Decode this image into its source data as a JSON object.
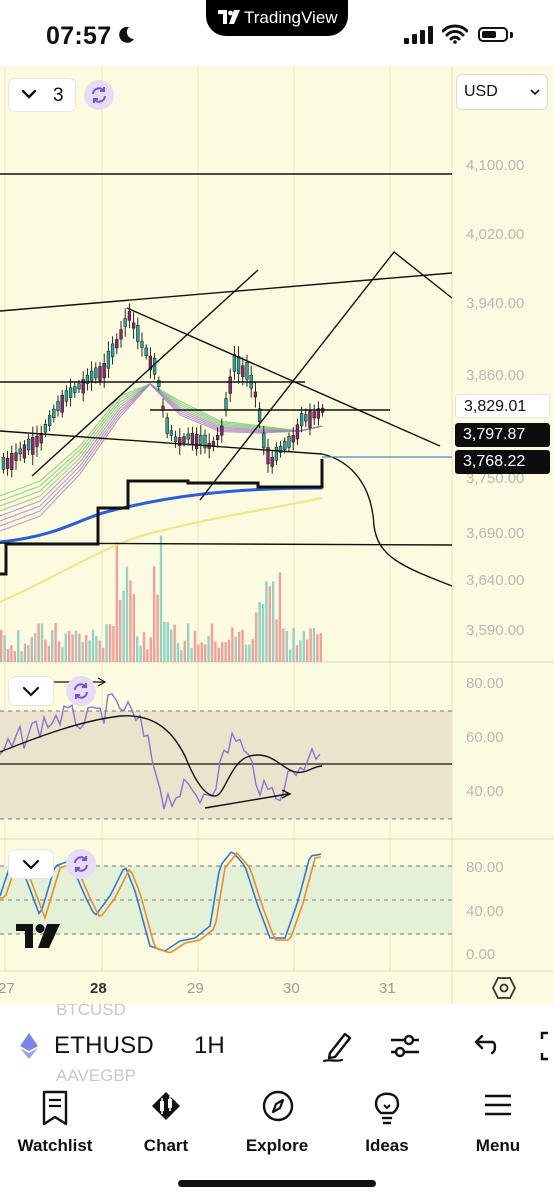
{
  "status_bar": {
    "time": "07:57",
    "app_name": "TradingView"
  },
  "chart": {
    "interval_count": "3",
    "currency": "USD",
    "price_axis": [
      "4,100.00",
      "4,020.00",
      "3,940.00",
      "3,860.00",
      "3,750.00",
      "3,690.00",
      "3,640.00",
      "3,590.00"
    ],
    "rsi_axis": [
      "80.00",
      "60.00",
      "40.00"
    ],
    "stoch_axis": [
      "80.00",
      "40.00",
      "0.00"
    ],
    "time_axis": [
      "27",
      "28",
      "29",
      "30",
      "31"
    ],
    "price_tags": {
      "last": "3,829.01",
      "tag2": "3,797.87",
      "tag3": "3,768.22"
    },
    "colors": {
      "background": "#fdfbdf",
      "candle_up": "#2aa69a",
      "candle_down": "#8a2a6a",
      "ma_blue": "#2a5fd6",
      "ma_yellow": "#f2e58a",
      "rsi": "#8a74d6",
      "stoch_k": "#2d7dd2",
      "stoch_d": "#f08a24",
      "volume_up": "#7ecbc2",
      "volume_down": "#ee8f8f"
    }
  },
  "symbol_bar": {
    "ghost_above": "BTCUSD",
    "symbol": "ETHUSD",
    "timeframe": "1H",
    "ghost_below": "AAVEGBP",
    "icons": [
      "ethereum-icon",
      "draw-icon",
      "indicators-icon",
      "undo-icon",
      "fullscreen-icon"
    ]
  },
  "nav": {
    "items": [
      {
        "label": "Watchlist",
        "icon": "watchlist-icon"
      },
      {
        "label": "Chart",
        "icon": "chart-icon"
      },
      {
        "label": "Explore",
        "icon": "compass-icon"
      },
      {
        "label": "Ideas",
        "icon": "lightbulb-icon"
      },
      {
        "label": "Menu",
        "icon": "menu-icon"
      }
    ]
  }
}
